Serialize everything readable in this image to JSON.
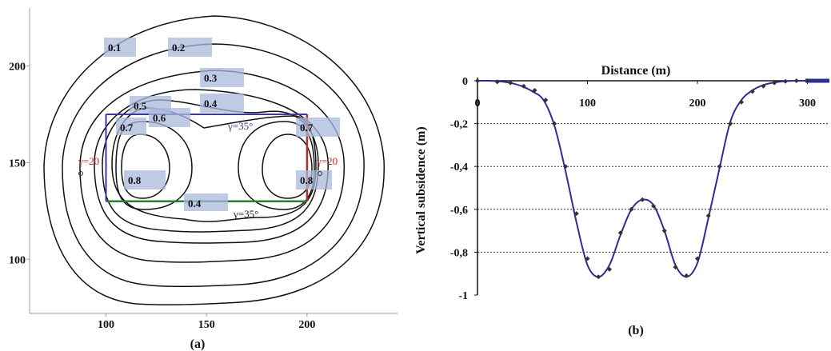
{
  "chart_data": [
    {
      "type": "contour",
      "panel_label": "(a)",
      "xticks": [
        100,
        150,
        200
      ],
      "yticks": [
        100,
        150,
        200
      ],
      "xlim": [
        62,
        245
      ],
      "ylim": [
        72,
        230
      ],
      "contour_levels": [
        "0.1",
        "0.2",
        "0.3",
        "0.4",
        "0.5",
        "0.6",
        "0.7",
        "0.7",
        "0.8",
        "0.8",
        "0.4"
      ],
      "annotations": [
        {
          "text": "γ=35°",
          "color": "#3a3a9a"
        },
        {
          "text": "γ=35°",
          "color": "#1a1a1a"
        },
        {
          "text": "γ=20",
          "color": "#b03030"
        },
        {
          "text": "γ=20",
          "color": "#b03030"
        }
      ],
      "rect_x": [
        100,
        200
      ],
      "rect_y": [
        130,
        175
      ]
    },
    {
      "type": "line",
      "panel_label": "(b)",
      "xlabel": "Distance (m)",
      "ylabel": "Vertical subsidence (m)",
      "xlim": [
        0,
        320
      ],
      "ylim": [
        -1,
        0
      ],
      "xticks": [
        "0",
        "100",
        "200",
        "300"
      ],
      "yticks": [
        "0",
        "-0,2",
        "-0,4",
        "-0,6",
        "-0,8",
        "-1"
      ],
      "grid": "horizontal",
      "line_color": "#2b2f94",
      "x": [
        0,
        10,
        20,
        30,
        40,
        50,
        60,
        70,
        80,
        90,
        100,
        110,
        120,
        130,
        140,
        150,
        160,
        170,
        180,
        190,
        200,
        210,
        220,
        230,
        240,
        250,
        260,
        270,
        280,
        290,
        300,
        310,
        320
      ],
      "y": [
        0,
        0,
        -0.003,
        -0.01,
        -0.025,
        -0.05,
        -0.09,
        -0.21,
        -0.42,
        -0.66,
        -0.86,
        -0.915,
        -0.86,
        -0.72,
        -0.6,
        -0.555,
        -0.58,
        -0.7,
        -0.86,
        -0.915,
        -0.85,
        -0.64,
        -0.41,
        -0.19,
        -0.09,
        -0.045,
        -0.02,
        -0.008,
        -0.002,
        0,
        0,
        0,
        0
      ],
      "markers_x": [
        0,
        18,
        30,
        42,
        52,
        62,
        70,
        80,
        90,
        100,
        110,
        120,
        130,
        140,
        150,
        160,
        170,
        180,
        190,
        200,
        210,
        220,
        230,
        240,
        250,
        260,
        270,
        280,
        290,
        300
      ],
      "markers_y": [
        0,
        -0.005,
        -0.01,
        -0.025,
        -0.045,
        -0.09,
        -0.2,
        -0.4,
        -0.62,
        -0.83,
        -0.915,
        -0.88,
        -0.71,
        -0.6,
        -0.555,
        -0.585,
        -0.7,
        -0.87,
        -0.91,
        -0.83,
        -0.63,
        -0.4,
        -0.2,
        -0.1,
        -0.05,
        -0.025,
        -0.01,
        -0.003,
        0,
        0
      ]
    }
  ]
}
